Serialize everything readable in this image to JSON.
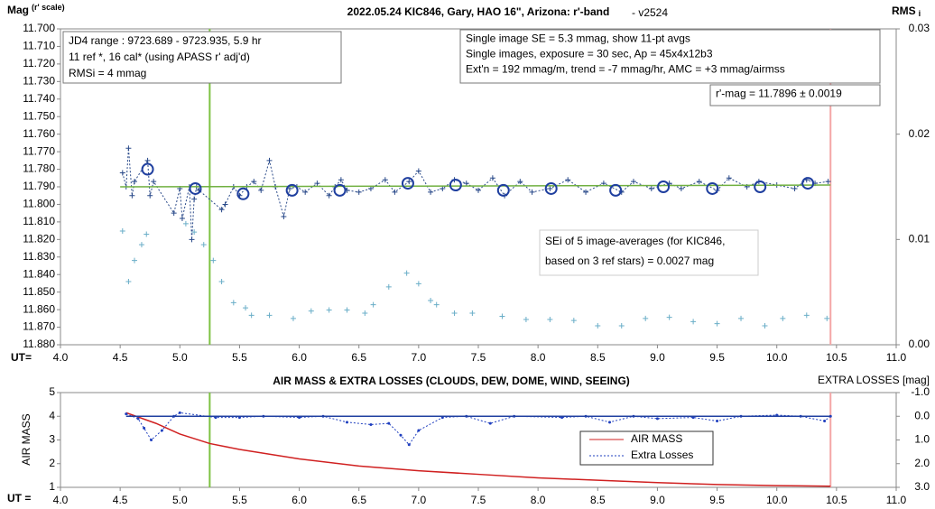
{
  "chart_data": [
    {
      "type": "scatter",
      "title": "2022.05.24 KIC846, Gary, HAO 16\", Arizona: r'-band",
      "subtitle": "- v2524",
      "ylabel": "Mag",
      "ylabel_note": "(r' scale)",
      "y2label": "RMS",
      "y2label_note": "i",
      "xlabel": "UT=",
      "xlim": [
        4,
        11
      ],
      "xticks": [
        {
          "value": 4,
          "label": "4.0"
        },
        {
          "value": 4.5,
          "label": "4.5"
        },
        {
          "value": 5,
          "label": "5.0"
        },
        {
          "value": 5.5,
          "label": "5.5"
        },
        {
          "value": 6,
          "label": "6.0"
        },
        {
          "value": 6.5,
          "label": "6.5"
        },
        {
          "value": 7,
          "label": "7.0"
        },
        {
          "value": 7.5,
          "label": "7.5"
        },
        {
          "value": 8,
          "label": "8.0"
        },
        {
          "value": 8.5,
          "label": "8.5"
        },
        {
          "value": 9,
          "label": "9.0"
        },
        {
          "value": 9.5,
          "label": "9.5"
        },
        {
          "value": 10,
          "label": "10.0"
        },
        {
          "value": 10.5,
          "label": "10.5"
        },
        {
          "value": 11,
          "label": "11.0"
        }
      ],
      "ylim": [
        11.88,
        11.7
      ],
      "yticks": [
        {
          "value": 11.7,
          "label": "11.700"
        },
        {
          "value": 11.71,
          "label": "11.710"
        },
        {
          "value": 11.72,
          "label": "11.720"
        },
        {
          "value": 11.73,
          "label": "11.730"
        },
        {
          "value": 11.74,
          "label": "11.740"
        },
        {
          "value": 11.75,
          "label": "11.750"
        },
        {
          "value": 11.76,
          "label": "11.760"
        },
        {
          "value": 11.77,
          "label": "11.770"
        },
        {
          "value": 11.78,
          "label": "11.780"
        },
        {
          "value": 11.79,
          "label": "11.790"
        },
        {
          "value": 11.8,
          "label": "11.800"
        },
        {
          "value": 11.81,
          "label": "11.810"
        },
        {
          "value": 11.82,
          "label": "11.820"
        },
        {
          "value": 11.83,
          "label": "11.830"
        },
        {
          "value": 11.84,
          "label": "11.840"
        },
        {
          "value": 11.85,
          "label": "11.850"
        },
        {
          "value": 11.86,
          "label": "11.860"
        },
        {
          "value": 11.87,
          "label": "11.870"
        },
        {
          "value": 11.88,
          "label": "11.880"
        }
      ],
      "y2lim": [
        0,
        0.03
      ],
      "y2ticks": [
        {
          "value": 0,
          "label": "0.00"
        },
        {
          "value": 0.01,
          "label": "0.01"
        },
        {
          "value": 0.02,
          "label": "0.02"
        },
        {
          "value": 0.03,
          "label": "0.03"
        }
      ],
      "grid": false,
      "markers": [
        {
          "x": 5.25,
          "color": "#7dc242"
        },
        {
          "x": 10.45,
          "color": "#f4a6a6"
        }
      ],
      "series": [
        {
          "color": "#2a4a8a",
          "marker": "plus",
          "dash": true,
          "x": [
            4.52,
            4.55,
            4.57,
            4.6,
            4.62,
            4.73,
            4.75,
            4.78,
            4.95,
            5.0,
            5.02,
            5.08,
            5.1,
            5.12,
            5.14,
            5.16,
            5.35,
            5.38,
            5.45,
            5.5,
            5.56,
            5.62,
            5.68,
            5.75,
            5.8,
            5.87,
            5.92,
            5.98,
            6.05,
            6.15,
            6.25,
            6.3,
            6.35,
            6.4,
            6.5,
            6.6,
            6.72,
            6.8,
            6.92,
            7.0,
            7.1,
            7.2,
            7.3,
            7.4,
            7.5,
            7.62,
            7.72,
            7.85,
            7.95,
            8.1,
            8.25,
            8.4,
            8.55,
            8.7,
            8.8,
            8.95,
            9.1,
            9.2,
            9.35,
            9.5,
            9.6,
            9.75,
            9.85,
            10.0,
            10.15,
            10.25,
            10.32,
            10.43
          ],
          "values": [
            11.782,
            11.79,
            11.768,
            11.795,
            11.787,
            11.775,
            11.795,
            11.787,
            11.805,
            11.791,
            11.808,
            11.79,
            11.82,
            11.797,
            11.79,
            11.792,
            11.803,
            11.8,
            11.79,
            11.795,
            11.79,
            11.787,
            11.792,
            11.775,
            11.79,
            11.807,
            11.791,
            11.79,
            11.793,
            11.788,
            11.795,
            11.79,
            11.786,
            11.792,
            11.793,
            11.791,
            11.786,
            11.793,
            11.787,
            11.781,
            11.793,
            11.791,
            11.786,
            11.788,
            11.792,
            11.785,
            11.795,
            11.787,
            11.793,
            11.791,
            11.786,
            11.793,
            11.788,
            11.793,
            11.787,
            11.791,
            11.788,
            11.791,
            11.787,
            11.792,
            11.785,
            11.79,
            11.787,
            11.789,
            11.791,
            11.786,
            11.788,
            11.787
          ]
        },
        {
          "color": "#70b040",
          "marker": "none",
          "dash": false,
          "x": [
            4.5,
            10.45
          ],
          "values": [
            11.79,
            11.789
          ]
        },
        {
          "color": "#1f3f9f",
          "marker": "circle",
          "dash": false,
          "noline": true,
          "x": [
            4.73,
            5.13,
            5.53,
            5.94,
            6.34,
            6.91,
            7.31,
            7.71,
            8.11,
            8.65,
            9.05,
            9.46,
            9.86,
            10.26
          ],
          "values": [
            11.78,
            11.791,
            11.794,
            11.792,
            11.792,
            11.788,
            11.789,
            11.792,
            11.791,
            11.792,
            11.79,
            11.791,
            11.79,
            11.788
          ]
        },
        {
          "color": "#6aaec8",
          "marker": "plus",
          "dash": false,
          "noline": true,
          "axis": "y2",
          "x": [
            4.52,
            4.57,
            4.62,
            4.68,
            4.72,
            5.05,
            5.12,
            5.2,
            5.28,
            5.35,
            5.45,
            5.55,
            5.6,
            5.75,
            5.95,
            6.1,
            6.25,
            6.4,
            6.55,
            6.62,
            6.75,
            6.9,
            7.0,
            7.1,
            7.15,
            7.3,
            7.45,
            7.7,
            7.9,
            8.1,
            8.3,
            8.5,
            8.7,
            8.9,
            9.1,
            9.3,
            9.5,
            9.7,
            9.9,
            10.05,
            10.25,
            10.42
          ],
          "values": [
            0.0108,
            0.006,
            0.008,
            0.0095,
            0.0105,
            0.0115,
            0.0107,
            0.0095,
            0.008,
            0.006,
            0.004,
            0.0035,
            0.0028,
            0.0028,
            0.0025,
            0.0032,
            0.0033,
            0.0033,
            0.003,
            0.0038,
            0.0055,
            0.0068,
            0.0058,
            0.0042,
            0.0038,
            0.003,
            0.003,
            0.0027,
            0.0024,
            0.0024,
            0.0023,
            0.0018,
            0.0018,
            0.0025,
            0.0026,
            0.0022,
            0.002,
            0.0025,
            0.0018,
            0.0025,
            0.0028,
            0.0025
          ]
        }
      ],
      "annotations": [
        {
          "lines": [
            "JD4 range : 9723.689 - 9723.935,  5.9  hr",
            "11 ref *, 16 cal* (using APASS r' adj'd)",
            "RMSi = 4 mmag"
          ]
        },
        {
          "lines": [
            "Single image SE = 5.3 mmag, show  11-pt avgs",
            "Single images, exposure = 30 sec, Ap = 45x4x12b3",
            "Ext'n = 192 mmag/m, trend = -7  mmag/hr, AMC = +3 mmag/airmss"
          ]
        },
        {
          "lines": [
            "r'-mag = 11.7896 ± 0.0019"
          ]
        },
        {
          "lines": [
            "SEi of 5 image-averages (for KIC846,",
            "based on 3 ref stars) = 0.0027 mag"
          ]
        }
      ]
    },
    {
      "type": "line",
      "title": "AIR MASS & EXTRA LOSSES (CLOUDS, DEW, DOME, WIND, SEEING)",
      "ylabel": "AIR MASS",
      "y2label": "EXTRA LOSSES [mag]",
      "xlabel": "UT =",
      "xlim": [
        4,
        11
      ],
      "xticks": [
        {
          "value": 4,
          "label": "4.0"
        },
        {
          "value": 4.5,
          "label": "4.5"
        },
        {
          "value": 5,
          "label": "5.0"
        },
        {
          "value": 5.5,
          "label": "5.5"
        },
        {
          "value": 6,
          "label": "6.0"
        },
        {
          "value": 6.5,
          "label": "6.5"
        },
        {
          "value": 7,
          "label": "7.0"
        },
        {
          "value": 7.5,
          "label": "7.5"
        },
        {
          "value": 8,
          "label": "8.0"
        },
        {
          "value": 8.5,
          "label": "8.5"
        },
        {
          "value": 9,
          "label": "9.0"
        },
        {
          "value": 9.5,
          "label": "9.5"
        },
        {
          "value": 10,
          "label": "10.0"
        },
        {
          "value": 10.5,
          "label": "10.5"
        },
        {
          "value": 11,
          "label": "11.0"
        }
      ],
      "ylim": [
        1,
        5
      ],
      "yticks": [
        1,
        2,
        3,
        4,
        5
      ],
      "y2lim": [
        3,
        -1
      ],
      "y2ticks": [
        {
          "value": -1,
          "label": "-1.0"
        },
        {
          "value": 0,
          "label": "0.0"
        },
        {
          "value": 1,
          "label": "1.0"
        },
        {
          "value": 2,
          "label": "2.0"
        },
        {
          "value": 3,
          "label": "3.0"
        }
      ],
      "grid": false,
      "markers": [
        {
          "x": 5.25,
          "color": "#7dc242"
        },
        {
          "x": 10.45,
          "color": "#f4a6a6"
        }
      ],
      "series": [
        {
          "name": "AIR MASS",
          "color": "#d02020",
          "marker": "none",
          "dash": false,
          "x": [
            4.55,
            4.8,
            5.0,
            5.25,
            5.5,
            6.0,
            6.5,
            7.0,
            7.5,
            8.0,
            8.5,
            9.0,
            9.5,
            10.0,
            10.45
          ],
          "values": [
            4.15,
            3.7,
            3.25,
            2.85,
            2.6,
            2.2,
            1.9,
            1.7,
            1.55,
            1.4,
            1.3,
            1.2,
            1.12,
            1.07,
            1.05
          ]
        },
        {
          "name": "Extra Losses",
          "color": "#1f3fbf",
          "marker": "dot",
          "dash": true,
          "axis": "y2",
          "x": [
            4.55,
            4.65,
            4.7,
            4.76,
            4.85,
            4.95,
            5.0,
            5.3,
            5.5,
            5.7,
            6.0,
            6.2,
            6.4,
            6.6,
            6.75,
            6.85,
            6.92,
            7.0,
            7.2,
            7.4,
            7.6,
            7.8,
            8.2,
            8.4,
            8.6,
            8.8,
            9.0,
            9.3,
            9.5,
            9.7,
            10.0,
            10.2,
            10.4,
            10.45
          ],
          "values": [
            -0.1,
            0.1,
            0.5,
            1.0,
            0.6,
            0.0,
            -0.15,
            0.05,
            0.05,
            0.0,
            0.05,
            0.0,
            0.25,
            0.35,
            0.3,
            0.8,
            1.2,
            0.6,
            0.05,
            0.0,
            0.3,
            0.0,
            0.05,
            0.0,
            0.25,
            0.0,
            0.1,
            0.05,
            0.2,
            0.0,
            -0.05,
            0.0,
            0.2,
            0.0
          ]
        },
        {
          "color": "#2040a0",
          "marker": "none",
          "dash": false,
          "axis": "y2",
          "x": [
            4.55,
            10.45
          ],
          "values": [
            0,
            0
          ]
        }
      ]
    }
  ]
}
